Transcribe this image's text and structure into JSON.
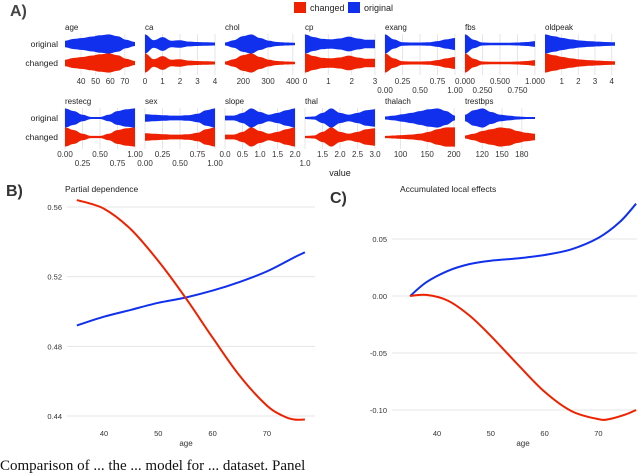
{
  "panels": {
    "a": "A)",
    "b": "B)",
    "c": "C)"
  },
  "legend": [
    {
      "label": "changed",
      "color": "#ee2200"
    },
    {
      "label": "original",
      "color": "#1030ee"
    }
  ],
  "caption": "Comparison of ... the ... model for ... dataset. Panel",
  "chart_data": [
    {
      "type": "violin",
      "panel": "A)",
      "xlabel": "value",
      "row_labels": [
        "original",
        "changed"
      ],
      "facets": [
        {
          "name": "age",
          "range": [
            29,
            77
          ],
          "ticks": [
            "40",
            "50",
            "60",
            "70"
          ],
          "tick_values": [
            40,
            50,
            60,
            70
          ],
          "original": [
            0.3,
            0.5,
            0.6,
            0.75,
            0.9,
            1,
            0.8,
            0.4,
            0.15
          ],
          "changed": [
            0.3,
            0.5,
            0.6,
            0.75,
            0.9,
            1,
            0.8,
            0.4,
            0.15
          ]
        },
        {
          "name": "ca",
          "range": [
            0,
            4
          ],
          "ticks": [
            "0",
            "1",
            "2",
            "3",
            "4"
          ],
          "tick_values": [
            0,
            1,
            2,
            3,
            4
          ],
          "original": [
            1,
            0.35,
            0.7,
            0.3,
            0.35,
            0.2,
            0.15,
            0.12,
            0.1
          ],
          "changed": [
            1,
            0.35,
            0.7,
            0.3,
            0.35,
            0.2,
            0.15,
            0.12,
            0.1
          ]
        },
        {
          "name": "chol",
          "range": [
            126,
            409
          ],
          "ticks": [
            "200",
            "300",
            "400"
          ],
          "tick_values": [
            200,
            300,
            400
          ],
          "original": [
            0.1,
            0.35,
            0.8,
            1,
            0.6,
            0.3,
            0.15,
            0.1,
            0.08
          ],
          "changed": [
            0.1,
            0.35,
            0.8,
            1,
            0.6,
            0.3,
            0.15,
            0.1,
            0.08
          ]
        },
        {
          "name": "cp",
          "range": [
            0,
            3
          ],
          "ticks": [
            "0",
            "1",
            "2",
            "3"
          ],
          "tick_values": [
            0,
            1,
            2,
            3
          ],
          "original": [
            1,
            0.7,
            0.5,
            0.45,
            0.55,
            0.75,
            0.55,
            0.4,
            0.4
          ],
          "changed": [
            1,
            0.7,
            0.5,
            0.45,
            0.55,
            0.75,
            0.55,
            0.4,
            0.4
          ]
        },
        {
          "name": "exang",
          "range": [
            0,
            1
          ],
          "ticks": [
            "0.00",
            "0.25",
            "0.50",
            "0.75",
            "1.00"
          ],
          "tick_values": [
            0,
            0.25,
            0.5,
            0.75,
            1
          ],
          "original": [
            1,
            0.45,
            0.12,
            0.1,
            0.1,
            0.12,
            0.25,
            0.45,
            0.6
          ],
          "changed": [
            1,
            0.45,
            0.12,
            0.1,
            0.1,
            0.12,
            0.25,
            0.45,
            0.6
          ]
        },
        {
          "name": "fbs",
          "range": [
            0,
            1
          ],
          "ticks": [
            "0.000",
            "0.250",
            "0.500",
            "0.750",
            "1.000"
          ],
          "tick_values": [
            0,
            0.25,
            0.5,
            0.75,
            1
          ],
          "original": [
            1,
            0.4,
            0.1,
            0.08,
            0.08,
            0.08,
            0.1,
            0.15,
            0.25
          ],
          "changed": [
            1,
            0.4,
            0.1,
            0.08,
            0.08,
            0.08,
            0.1,
            0.15,
            0.25
          ]
        },
        {
          "name": "oldpeak",
          "range": [
            0,
            4.2
          ],
          "ticks": [
            "1",
            "2",
            "3",
            "4"
          ],
          "tick_values": [
            1,
            2,
            3,
            4
          ],
          "original": [
            1,
            0.8,
            0.6,
            0.45,
            0.32,
            0.25,
            0.2,
            0.15,
            0.12
          ],
          "changed": [
            1,
            0.8,
            0.6,
            0.45,
            0.32,
            0.25,
            0.2,
            0.15,
            0.12
          ]
        },
        {
          "name": "restecg",
          "range": [
            0,
            1
          ],
          "ticks": [
            "0.00",
            "0.25",
            "0.50",
            "0.75",
            "1.00"
          ],
          "tick_values": [
            0,
            0.25,
            0.5,
            0.75,
            1
          ],
          "original": [
            1,
            0.7,
            0.3,
            0.05,
            0.05,
            0.3,
            0.7,
            0.9,
            1
          ],
          "changed": [
            1,
            0.7,
            0.3,
            0.05,
            0.05,
            0.3,
            0.7,
            0.9,
            1
          ]
        },
        {
          "name": "sex",
          "range": [
            0,
            1
          ],
          "ticks": [
            "0.00",
            "0.25",
            "0.50",
            "0.75",
            "1.00"
          ],
          "tick_values": [
            0,
            0.25,
            0.5,
            0.75,
            1
          ],
          "original": [
            0.35,
            0.3,
            0.25,
            0.2,
            0.2,
            0.25,
            0.4,
            0.8,
            1
          ],
          "changed": [
            0.35,
            0.3,
            0.25,
            0.2,
            0.2,
            0.25,
            0.4,
            0.8,
            1
          ]
        },
        {
          "name": "slope",
          "range": [
            0,
            2
          ],
          "ticks": [
            "0.0",
            "0.5",
            "1.0",
            "1.5",
            "2.0"
          ],
          "tick_values": [
            0,
            0.5,
            1,
            1.5,
            2
          ],
          "original": [
            0.2,
            0.2,
            0.5,
            1,
            0.6,
            0.3,
            0.5,
            0.8,
            1
          ],
          "changed": [
            0.2,
            0.2,
            0.5,
            1,
            0.6,
            0.3,
            0.5,
            0.8,
            1
          ]
        },
        {
          "name": "thal",
          "range": [
            1,
            3
          ],
          "ticks": [
            "1.0",
            "1.5",
            "2.0",
            "2.5",
            "3.0"
          ],
          "tick_values": [
            1,
            1.5,
            2,
            2.5,
            3
          ],
          "original": [
            0.05,
            0.1,
            0.5,
            1,
            0.5,
            0.3,
            0.5,
            0.8,
            0.9
          ],
          "changed": [
            0.05,
            0.1,
            0.5,
            1,
            0.5,
            0.3,
            0.5,
            0.8,
            0.9
          ]
        },
        {
          "name": "thalach",
          "range": [
            71,
            202
          ],
          "ticks": [
            "100",
            "150",
            "200"
          ],
          "tick_values": [
            100,
            150,
            200
          ],
          "original": [
            0.1,
            0.2,
            0.35,
            0.5,
            0.7,
            0.9,
            1,
            0.7,
            0.2
          ],
          "changed": [
            0.05,
            0.1,
            0.15,
            0.2,
            0.3,
            0.5,
            0.8,
            1,
            1
          ]
        },
        {
          "name": "trestbps",
          "range": [
            94,
            200
          ],
          "ticks": [
            "120",
            "150",
            "180"
          ],
          "tick_values": [
            120,
            150,
            180
          ],
          "original": [
            0.3,
            0.8,
            1,
            0.6,
            0.3,
            0.2,
            0.1,
            0.05,
            0.05
          ],
          "changed": [
            0.1,
            0.3,
            0.6,
            0.8,
            1,
            0.9,
            0.6,
            0.4,
            0.3
          ]
        }
      ]
    },
    {
      "type": "line",
      "panel": "B)",
      "title": "Partial dependence",
      "xlabel": "age",
      "xticks": [
        40,
        50,
        60,
        70
      ],
      "yticks": [
        "0.44",
        "0.48",
        "0.52",
        "0.56"
      ],
      "ylim": [
        0.44,
        0.56
      ],
      "grid": true,
      "series": [
        {
          "color": "#1030ee",
          "x": [
            35,
            40,
            45,
            50,
            55,
            60,
            65,
            70,
            75,
            77
          ],
          "y": [
            0.492,
            0.497,
            0.501,
            0.505,
            0.508,
            0.512,
            0.517,
            0.523,
            0.531,
            0.534
          ]
        },
        {
          "color": "#ee2200",
          "x": [
            35,
            40,
            45,
            50,
            55,
            60,
            65,
            70,
            73,
            75,
            77
          ],
          "y": [
            0.564,
            0.559,
            0.547,
            0.529,
            0.508,
            0.485,
            0.463,
            0.446,
            0.44,
            0.438,
            0.438
          ]
        }
      ]
    },
    {
      "type": "line",
      "panel": "C)",
      "title": "Accumulated local effects",
      "xlabel": "age",
      "xticks": [
        40,
        50,
        60,
        70
      ],
      "yticks": [
        "-0.10",
        "-0.05",
        "0.00",
        "0.05"
      ],
      "ylim": [
        -0.1,
        0.05
      ],
      "grid": true,
      "series": [
        {
          "color": "#1030ee",
          "x": [
            35,
            38,
            42,
            46,
            50,
            55,
            60,
            65,
            70,
            74,
            77
          ],
          "y": [
            0,
            0.012,
            0.022,
            0.028,
            0.031,
            0.033,
            0.036,
            0.041,
            0.051,
            0.065,
            0.081
          ]
        },
        {
          "color": "#ee2200",
          "x": [
            35,
            38,
            42,
            46,
            50,
            55,
            60,
            65,
            70,
            72,
            75,
            77
          ],
          "y": [
            0,
            0.001,
            -0.004,
            -0.017,
            -0.035,
            -0.06,
            -0.084,
            -0.101,
            -0.108,
            -0.108,
            -0.104,
            -0.1
          ]
        }
      ]
    }
  ]
}
